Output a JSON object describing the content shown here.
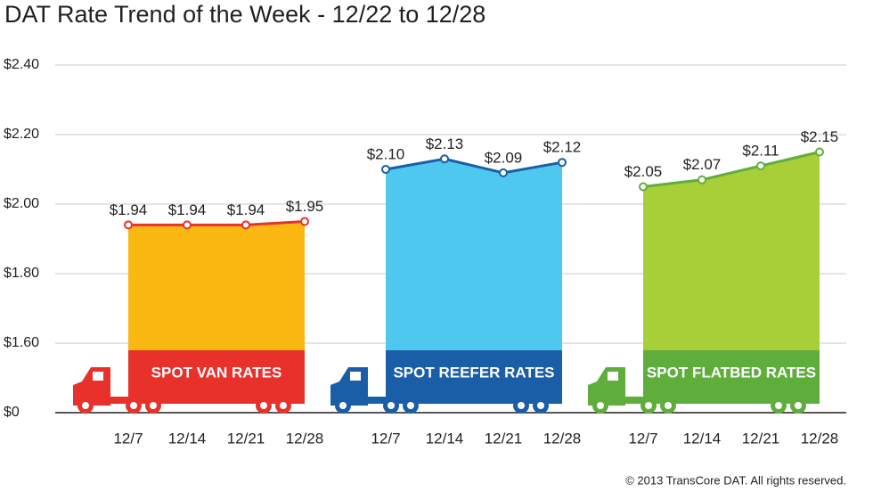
{
  "chart_data": {
    "type": "area",
    "title": "DAT Rate Trend of the Week - 12/22 to 12/28",
    "categories": [
      "12/7",
      "12/14",
      "12/21",
      "12/28"
    ],
    "series": [
      {
        "name": "SPOT VAN RATES",
        "color": "#fbb813",
        "line_color": "#e8312a",
        "values": [
          1.94,
          1.94,
          1.94,
          1.95
        ],
        "value_labels": [
          "$1.94",
          "$1.94",
          "$1.94",
          "$1.95"
        ]
      },
      {
        "name": "SPOT REEFER RATES",
        "color": "#4fc8f0",
        "line_color": "#1b5ea8",
        "values": [
          2.1,
          2.13,
          2.09,
          2.12
        ],
        "value_labels": [
          "$2.10",
          "$2.13",
          "$2.09",
          "$2.12"
        ]
      },
      {
        "name": "SPOT FLATBED RATES",
        "color": "#a8cf38",
        "line_color": "#5fae3c",
        "values": [
          2.05,
          2.07,
          2.11,
          2.15
        ],
        "value_labels": [
          "$2.05",
          "$2.07",
          "$2.11",
          "$2.15"
        ]
      }
    ],
    "ylim": [
      1.4,
      2.4
    ],
    "axis_break": true,
    "yticks": [
      {
        "value": 0,
        "label": "$0"
      },
      {
        "value": 1.6,
        "label": "$1.60"
      },
      {
        "value": 1.8,
        "label": "$1.80"
      },
      {
        "value": 2.0,
        "label": "$2.00"
      },
      {
        "value": 2.2,
        "label": "$2.20"
      },
      {
        "value": 2.4,
        "label": "$2.40"
      }
    ],
    "grid": true,
    "footnote": "© 2013 TransCore DAT. All rights reserved."
  }
}
